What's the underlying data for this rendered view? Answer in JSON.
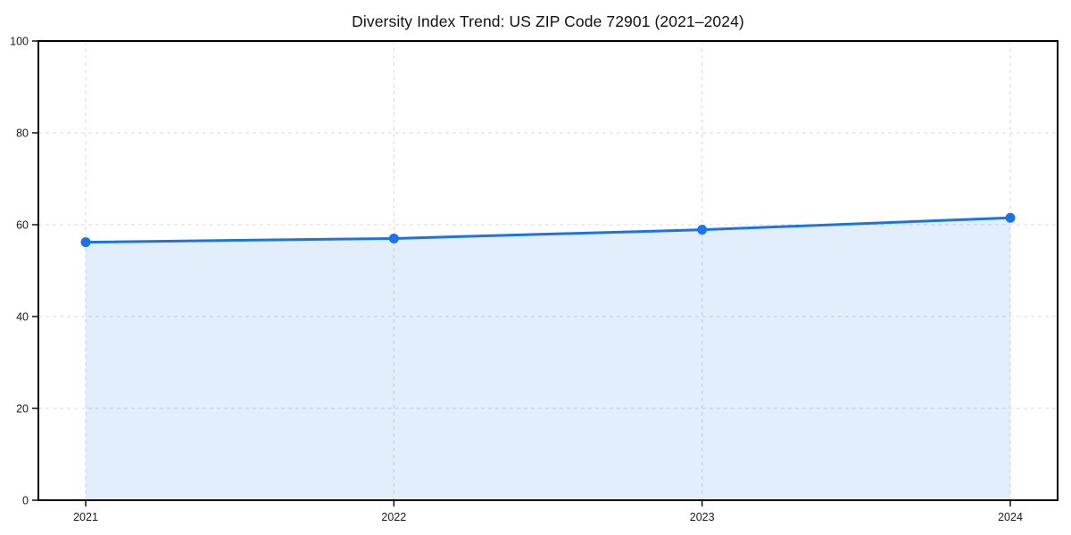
{
  "chart": {
    "title": "Diversity Index Trend: US ZIP Code 72901 (2021–2024)"
  },
  "chart_data": {
    "type": "line",
    "title": "Diversity Index Trend: US ZIP Code 72901 (2021–2024)",
    "categories": [
      "2021",
      "2022",
      "2023",
      "2024"
    ],
    "series": [
      {
        "name": "Diversity Index",
        "values": [
          56.2,
          57.0,
          58.9,
          61.5
        ]
      }
    ],
    "xlabel": "",
    "ylabel": "",
    "ylim": [
      0,
      100
    ],
    "yticks": [
      0,
      20,
      40,
      60,
      80,
      100
    ],
    "grid": true,
    "grid_style": "dashed",
    "legend_position": "none",
    "marker": "circle",
    "area_fill": true,
    "colors": {
      "line": "#1a73e8",
      "area_fill": "rgba(26,115,232,0.12)",
      "grid": "#d9d9d9",
      "axis": "#000000",
      "tick_label": "#1a1a1a",
      "title": "#111111",
      "background": "#ffffff"
    }
  }
}
